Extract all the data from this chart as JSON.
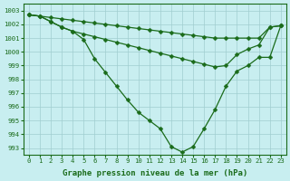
{
  "line1": {
    "x": [
      0,
      1,
      2,
      3,
      4,
      5,
      6,
      7,
      8,
      9,
      10,
      11,
      12,
      13,
      14,
      15,
      16,
      17,
      18,
      19,
      20,
      21,
      22,
      23
    ],
    "y": [
      1002.7,
      1002.6,
      1002.5,
      1002.4,
      1002.3,
      1002.2,
      1002.1,
      1002.0,
      1001.9,
      1001.8,
      1001.7,
      1001.6,
      1001.5,
      1001.4,
      1001.3,
      1001.2,
      1001.1,
      1001.0,
      1001.0,
      1001.0,
      1001.0,
      1001.0,
      1001.8,
      1001.9
    ]
  },
  "line2": {
    "x": [
      0,
      1,
      2,
      3,
      4,
      5,
      6,
      7,
      8,
      9,
      10,
      11,
      12,
      13,
      14,
      15,
      16,
      17,
      18,
      19,
      20,
      21,
      22,
      23
    ],
    "y": [
      1002.7,
      1002.6,
      1002.2,
      1001.8,
      1001.5,
      1001.3,
      1001.1,
      1000.9,
      1000.7,
      1000.5,
      1000.3,
      1000.1,
      999.9,
      999.7,
      999.5,
      999.3,
      999.1,
      998.9,
      999.0,
      999.8,
      1000.2,
      1000.5,
      1001.8,
      1001.9
    ]
  },
  "line3": {
    "x": [
      0,
      1,
      2,
      3,
      4,
      5,
      6,
      7,
      8,
      9,
      10,
      11,
      12,
      13,
      14,
      15,
      16,
      17,
      18,
      19,
      20,
      21,
      22,
      23
    ],
    "y": [
      1002.7,
      1002.6,
      1002.2,
      1001.8,
      1001.5,
      1000.9,
      999.5,
      998.5,
      997.5,
      996.5,
      995.6,
      995.0,
      994.4,
      993.1,
      992.7,
      993.1,
      994.4,
      995.8,
      997.5,
      998.6,
      999.0,
      999.6,
      999.6,
      1001.9
    ]
  },
  "line_color": "#1a6b1a",
  "marker": "D",
  "marker_size": 2.5,
  "bg_color": "#c8eef0",
  "grid_color": "#a0cdd0",
  "ylim": [
    992.5,
    1003.5
  ],
  "yticks": [
    993,
    994,
    995,
    996,
    997,
    998,
    999,
    1000,
    1001,
    1002,
    1003
  ],
  "xticks": [
    0,
    1,
    2,
    3,
    4,
    5,
    6,
    7,
    8,
    9,
    10,
    11,
    12,
    13,
    14,
    15,
    16,
    17,
    18,
    19,
    20,
    21,
    22,
    23
  ],
  "xlabel": "Graphe pression niveau de la mer (hPa)",
  "xlabel_color": "#1a6b1a",
  "tick_color": "#1a6b1a",
  "label_fontsize": 6.5,
  "tick_fontsize": 5.2
}
